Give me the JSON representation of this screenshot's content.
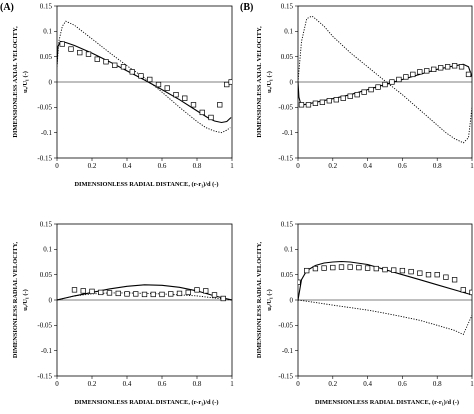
{
  "panel_labels": [
    "(A)",
    "(B)"
  ],
  "chart_data": [
    {
      "panel": "(A)",
      "type": "line",
      "xlabel": "DIMENSIONLESS RADIAL DISTANCE, (r-r₁)/d (-)",
      "ylabel_lines": [
        "DIMENSIONLESS AXIAL VELOCITY,",
        "uₓ/U₁ (-)"
      ],
      "xlim": [
        0,
        1
      ],
      "ylim": [
        -0.15,
        0.15
      ],
      "xticks": [
        "0",
        "0.2",
        "0.4",
        "0.6",
        "0.8",
        "1"
      ],
      "yticks": [
        "-0.15",
        "-0.1",
        "-0.05",
        "0",
        "0.05",
        "0.1",
        "0.15"
      ],
      "grid": false,
      "series": [
        {
          "style": "solid",
          "x": [
            0,
            0.005,
            0.02,
            0.05,
            0.1,
            0.2,
            0.3,
            0.4,
            0.5,
            0.6,
            0.7,
            0.8,
            0.86,
            0.9,
            0.94,
            0.97,
            0.985,
            0.995
          ],
          "y": [
            0.035,
            0.07,
            0.08,
            0.078,
            0.072,
            0.057,
            0.04,
            0.022,
            0.004,
            -0.015,
            -0.035,
            -0.057,
            -0.07,
            -0.077,
            -0.08,
            -0.078,
            -0.073,
            -0.07
          ]
        },
        {
          "style": "dotted",
          "x": [
            0,
            0.01,
            0.03,
            0.05,
            0.1,
            0.2,
            0.3,
            0.4,
            0.5,
            0.6,
            0.7,
            0.8,
            0.85,
            0.9,
            0.94,
            0.97,
            0.99
          ],
          "y": [
            0.03,
            0.08,
            0.11,
            0.12,
            0.112,
            0.085,
            0.058,
            0.032,
            0.008,
            -0.02,
            -0.05,
            -0.078,
            -0.09,
            -0.097,
            -0.1,
            -0.095,
            -0.09
          ]
        },
        {
          "style": "markers",
          "marker": "square",
          "x": [
            0.03,
            0.08,
            0.13,
            0.18,
            0.23,
            0.28,
            0.33,
            0.38,
            0.43,
            0.48,
            0.53,
            0.58,
            0.63,
            0.68,
            0.73,
            0.78,
            0.83,
            0.88,
            0.93,
            0.97,
            0.995
          ],
          "y": [
            0.075,
            0.065,
            0.058,
            0.055,
            0.045,
            0.04,
            0.033,
            0.03,
            0.02,
            0.012,
            0.005,
            -0.005,
            -0.012,
            -0.025,
            -0.032,
            -0.045,
            -0.06,
            -0.07,
            -0.045,
            -0.005,
            0
          ]
        }
      ]
    },
    {
      "panel": "(B)",
      "type": "line",
      "xlabel": "",
      "ylabel_lines": [
        "DIMENSIONLESS AXIAL VELOCITY,",
        "uₓ/U₁ (-)"
      ],
      "xlim": [
        0,
        1
      ],
      "ylim": [
        -0.15,
        0.15
      ],
      "xticks": [
        "0",
        "0.2",
        "0.4",
        "0.6",
        "0.8",
        "1"
      ],
      "yticks": [
        "-0.15",
        "-0.1",
        "-0.05",
        "0",
        "0.05",
        "0.1",
        "0.15"
      ],
      "grid": false,
      "series": [
        {
          "style": "solid",
          "x": [
            0,
            0.005,
            0.015,
            0.03,
            0.06,
            0.1,
            0.2,
            0.3,
            0.4,
            0.5,
            0.6,
            0.7,
            0.8,
            0.9,
            0.95,
            0.98,
            0.99,
            1.0
          ],
          "y": [
            0,
            -0.03,
            -0.042,
            -0.045,
            -0.043,
            -0.04,
            -0.033,
            -0.025,
            -0.015,
            -0.005,
            0.005,
            0.015,
            0.025,
            0.032,
            0.035,
            0.03,
            0.02,
            0.01
          ]
        },
        {
          "style": "dotted",
          "x": [
            0,
            0.02,
            0.05,
            0.08,
            0.1,
            0.15,
            0.2,
            0.3,
            0.4,
            0.5,
            0.6,
            0.7,
            0.8,
            0.85,
            0.9,
            0.95,
            0.98,
            1.0
          ],
          "y": [
            0,
            0.08,
            0.125,
            0.13,
            0.125,
            0.11,
            0.09,
            0.058,
            0.03,
            0.002,
            -0.025,
            -0.055,
            -0.085,
            -0.1,
            -0.112,
            -0.12,
            -0.11,
            -0.05
          ]
        },
        {
          "style": "markers",
          "marker": "square",
          "x": [
            0.02,
            0.06,
            0.1,
            0.14,
            0.18,
            0.22,
            0.26,
            0.3,
            0.34,
            0.38,
            0.42,
            0.46,
            0.5,
            0.54,
            0.58,
            0.62,
            0.66,
            0.7,
            0.74,
            0.78,
            0.82,
            0.86,
            0.9,
            0.94,
            0.98
          ],
          "y": [
            -0.045,
            -0.045,
            -0.042,
            -0.04,
            -0.037,
            -0.035,
            -0.032,
            -0.028,
            -0.025,
            -0.02,
            -0.015,
            -0.01,
            -0.005,
            0,
            0.005,
            0.01,
            0.015,
            0.02,
            0.022,
            0.025,
            0.028,
            0.03,
            0.032,
            0.03,
            0.015
          ]
        }
      ]
    },
    {
      "panel": "(A)",
      "type": "line",
      "xlabel": "DIMENSIONLESS RADIAL DISTANCE, (r-r₁)/d (-)",
      "ylabel_lines": [
        "DIMENSIONLESS RADIAL VELOCITY,",
        "uᵣ/U₁ (-)"
      ],
      "xlim": [
        0,
        1
      ],
      "ylim": [
        -0.15,
        0.15
      ],
      "xticks": [
        "0",
        "0.2",
        "0.4",
        "0.6",
        "0.8",
        "1"
      ],
      "yticks": [
        "-0.15",
        "-0.1",
        "-0.05",
        "0",
        "0.05",
        "0.1",
        "0.15"
      ],
      "grid": false,
      "series": [
        {
          "style": "solid",
          "x": [
            0,
            0.1,
            0.2,
            0.3,
            0.4,
            0.5,
            0.6,
            0.7,
            0.8,
            0.9,
            0.95,
            1.0
          ],
          "y": [
            0,
            0.008,
            0.015,
            0.022,
            0.027,
            0.03,
            0.029,
            0.025,
            0.018,
            0.008,
            0.004,
            0
          ]
        },
        {
          "style": "dotted",
          "x": [
            0,
            0.1,
            0.2,
            0.3,
            0.4,
            0.5,
            0.6,
            0.7,
            0.8,
            0.9,
            1.0
          ],
          "y": [
            0,
            0.008,
            0.012,
            0.014,
            0.014,
            0.013,
            0.012,
            0.01,
            0.008,
            0.004,
            0
          ]
        },
        {
          "style": "markers",
          "marker": "square",
          "x": [
            0.1,
            0.15,
            0.2,
            0.25,
            0.3,
            0.35,
            0.4,
            0.45,
            0.5,
            0.55,
            0.6,
            0.65,
            0.7,
            0.75,
            0.8,
            0.85,
            0.9,
            0.95
          ],
          "y": [
            0.02,
            0.018,
            0.017,
            0.015,
            0.014,
            0.013,
            0.012,
            0.012,
            0.011,
            0.011,
            0.011,
            0.012,
            0.013,
            0.015,
            0.02,
            0.018,
            0.01,
            0.003
          ]
        }
      ]
    },
    {
      "panel": "(B)",
      "type": "line",
      "xlabel": "DIMENSIONLESS RADIAL DISTANCE, (r-r₁)/d (-)",
      "ylabel_lines": [
        "DIMENSIONLESS RADIAL VELOCITY,",
        "uᵣ/U₁ (-)"
      ],
      "xlim": [
        0,
        1
      ],
      "ylim": [
        -0.15,
        0.15
      ],
      "xticks": [
        "0",
        "0.2",
        "0.4",
        "0.6",
        "0.8",
        "1"
      ],
      "yticks": [
        "-0.15",
        "-0.1",
        "-0.05",
        "0",
        "0.05",
        "0.1",
        "0.15"
      ],
      "grid": false,
      "series": [
        {
          "style": "solid",
          "x": [
            0,
            0.02,
            0.05,
            0.1,
            0.15,
            0.2,
            0.25,
            0.3,
            0.4,
            0.5,
            0.6,
            0.7,
            0.8,
            0.9,
            1.0
          ],
          "y": [
            0,
            0.04,
            0.058,
            0.068,
            0.073,
            0.075,
            0.076,
            0.075,
            0.07,
            0.06,
            0.05,
            0.04,
            0.03,
            0.02,
            0.01
          ]
        },
        {
          "style": "dotted",
          "x": [
            0,
            0.1,
            0.2,
            0.3,
            0.4,
            0.5,
            0.6,
            0.7,
            0.8,
            0.9,
            0.95,
            1.0
          ],
          "y": [
            0,
            -0.005,
            -0.01,
            -0.015,
            -0.02,
            -0.026,
            -0.033,
            -0.04,
            -0.05,
            -0.06,
            -0.068,
            -0.03
          ]
        },
        {
          "style": "markers",
          "marker": "square",
          "x": [
            0,
            0.05,
            0.1,
            0.15,
            0.2,
            0.25,
            0.3,
            0.35,
            0.4,
            0.45,
            0.5,
            0.55,
            0.6,
            0.65,
            0.7,
            0.75,
            0.8,
            0.85,
            0.9,
            0.95,
            1.0
          ],
          "y": [
            0.035,
            0.058,
            0.062,
            0.063,
            0.064,
            0.065,
            0.065,
            0.064,
            0.063,
            0.062,
            0.06,
            0.059,
            0.058,
            0.056,
            0.053,
            0.05,
            0.05,
            0.045,
            0.04,
            0.02,
            0.015
          ]
        }
      ]
    }
  ]
}
